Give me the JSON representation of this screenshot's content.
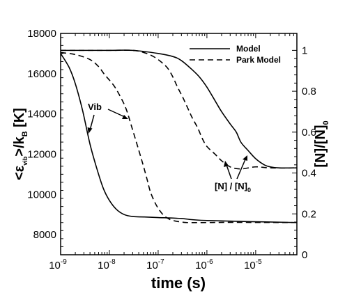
{
  "chart_data": {
    "type": "line",
    "xlabel": "time (s)",
    "xscale": "log",
    "xlim": [
      1e-09,
      7e-05
    ],
    "x_ticks": [
      1e-09,
      1e-08,
      1e-07,
      1e-06,
      1e-05
    ],
    "x_tick_labels": [
      [
        "10",
        "-9"
      ],
      [
        "10",
        "-8"
      ],
      [
        "10",
        "-7"
      ],
      [
        "10",
        "-6"
      ],
      [
        "10",
        "-5"
      ]
    ],
    "ylabel_left": {
      "parts": [
        "<ε",
        "vib",
        ">/k",
        "B",
        " [K]"
      ]
    },
    "ylim_left": [
      7000,
      18000
    ],
    "y_ticks_left": [
      8000,
      10000,
      12000,
      14000,
      16000,
      18000
    ],
    "ylabel_right": {
      "parts": [
        "[N]/[N]",
        "0"
      ]
    },
    "ylim_right": [
      0,
      1.083
    ],
    "y_ticks_right": [
      0,
      0.2,
      0.4,
      0.6,
      0.8,
      1
    ],
    "y_tick_labels_right": [
      "0",
      "0.2",
      "0.4",
      "0.6",
      "0.8",
      "1"
    ],
    "legend": {
      "position": "top-right",
      "entries": [
        {
          "label": "Model",
          "style": "solid"
        },
        {
          "label": "Park Model",
          "style": "dashed"
        }
      ]
    },
    "annotations": [
      {
        "text": "Vib"
      },
      {
        "text_parts": [
          "[N] / [N]",
          "0"
        ]
      }
    ],
    "series": [
      {
        "name": "Model",
        "quantity": "vibrational temperature",
        "axis": "left",
        "style": "solid",
        "x": [
          1e-09,
          1.5e-09,
          2e-09,
          2.8e-09,
          4e-09,
          5.5e-09,
          7.5e-09,
          1e-08,
          1.4e-08,
          2e-08,
          3e-08,
          5e-08,
          1e-07,
          3e-07,
          1e-06,
          7e-05
        ],
        "y": [
          17000,
          16300,
          15500,
          14200,
          12500,
          11300,
          10300,
          9700,
          9250,
          9000,
          8900,
          8880,
          8850,
          8800,
          8700,
          8600
        ]
      },
      {
        "name": "Park Model",
        "quantity": "vibrational temperature",
        "axis": "left",
        "style": "dashed",
        "x": [
          1e-09,
          2e-09,
          4e-09,
          6e-09,
          8e-09,
          1.2e-08,
          1.6e-08,
          2.2e-08,
          3e-08,
          4e-08,
          5e-08,
          6e-08,
          7e-08,
          9e-08,
          1.2e-07,
          1.6e-07,
          2.2e-07,
          3e-07,
          4e-07,
          1e-06,
          3e-06,
          7e-05
        ],
        "y": [
          17050,
          16950,
          16700,
          16350,
          15950,
          15450,
          14950,
          14250,
          13200,
          12200,
          11400,
          10700,
          10100,
          9500,
          9050,
          8800,
          8680,
          8630,
          8600,
          8600,
          8610,
          8600
        ]
      },
      {
        "name": "Model",
        "quantity": "[N]/[N]0",
        "axis": "right",
        "style": "solid",
        "x": [
          1e-09,
          3e-09,
          1e-08,
          3e-08,
          1e-07,
          2e-07,
          3e-07,
          5e-07,
          7e-07,
          1e-06,
          1.5e-06,
          2e-06,
          3e-06,
          4e-06,
          5e-06,
          7e-06,
          1e-05,
          1.5e-05,
          2e-05,
          3e-05,
          7e-05
        ],
        "y": [
          1.0,
          1.0,
          1.0,
          1.0,
          0.985,
          0.97,
          0.95,
          0.905,
          0.87,
          0.82,
          0.75,
          0.7,
          0.64,
          0.6,
          0.55,
          0.51,
          0.47,
          0.44,
          0.43,
          0.425,
          0.425
        ]
      },
      {
        "name": "Park Model",
        "quantity": "[N]/[N]0",
        "axis": "right",
        "style": "dashed",
        "x": [
          1e-09,
          3e-09,
          1e-08,
          3e-08,
          5e-08,
          8e-08,
          1.2e-07,
          1.6e-07,
          2e-07,
          2.5e-07,
          3.2e-07,
          4e-07,
          5e-07,
          6.5e-07,
          8e-07,
          1e-06,
          1.5e-06,
          2e-06,
          3e-06,
          5e-06,
          1e-05,
          2e-05,
          7e-05
        ],
        "y": [
          1.0,
          1.0,
          1.0,
          1.0,
          0.99,
          0.97,
          0.94,
          0.91,
          0.87,
          0.82,
          0.77,
          0.72,
          0.67,
          0.62,
          0.57,
          0.53,
          0.49,
          0.46,
          0.43,
          0.42,
          0.43,
          0.425,
          0.425
        ]
      }
    ]
  }
}
